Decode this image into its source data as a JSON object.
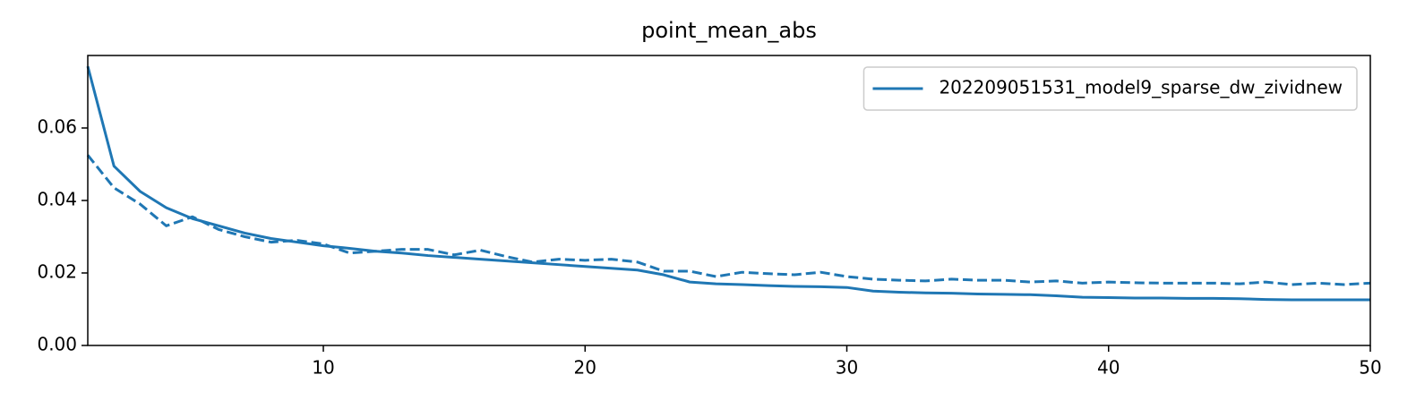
{
  "chart_data": {
    "type": "line",
    "title": "point_mean_abs",
    "x": [
      1,
      2,
      3,
      4,
      5,
      6,
      7,
      8,
      9,
      10,
      11,
      12,
      13,
      14,
      15,
      16,
      17,
      18,
      19,
      20,
      21,
      22,
      23,
      24,
      25,
      26,
      27,
      28,
      29,
      30,
      31,
      32,
      33,
      34,
      35,
      36,
      37,
      38,
      39,
      40,
      41,
      42,
      43,
      44,
      45,
      46,
      47,
      48,
      49,
      50
    ],
    "series": [
      {
        "name": "202209051531_model9_sparse_dw_zividnew",
        "color": "#1f77b4",
        "linestyle": "solid",
        "values": [
          0.077,
          0.0495,
          0.0425,
          0.038,
          0.035,
          0.033,
          0.031,
          0.0295,
          0.0285,
          0.0275,
          0.0268,
          0.026,
          0.0255,
          0.0248,
          0.0243,
          0.0238,
          0.0233,
          0.0228,
          0.0223,
          0.0218,
          0.0213,
          0.0208,
          0.0195,
          0.0175,
          0.017,
          0.0168,
          0.0165,
          0.0163,
          0.0162,
          0.016,
          0.015,
          0.0147,
          0.0145,
          0.0144,
          0.0142,
          0.0141,
          0.014,
          0.0137,
          0.0133,
          0.0132,
          0.0131,
          0.0131,
          0.013,
          0.013,
          0.0129,
          0.0127,
          0.0126,
          0.0126,
          0.0126,
          0.0126
        ]
      },
      {
        "color": "#1f77b4",
        "linestyle": "dashed",
        "values": [
          0.0525,
          0.0435,
          0.039,
          0.033,
          0.0355,
          0.032,
          0.03,
          0.0285,
          0.029,
          0.028,
          0.0255,
          0.026,
          0.0265,
          0.0265,
          0.025,
          0.0263,
          0.0245,
          0.023,
          0.0238,
          0.0235,
          0.0238,
          0.023,
          0.0205,
          0.0205,
          0.019,
          0.0202,
          0.0198,
          0.0195,
          0.0202,
          0.019,
          0.0183,
          0.018,
          0.0178,
          0.0183,
          0.018,
          0.018,
          0.0175,
          0.0178,
          0.0172,
          0.0175,
          0.0173,
          0.0172,
          0.0172,
          0.0172,
          0.017,
          0.0175,
          0.0168,
          0.0172,
          0.0168,
          0.0172
        ]
      }
    ],
    "xlim": [
      1,
      50
    ],
    "xticks": [
      10,
      20,
      30,
      40,
      50
    ],
    "ylim": [
      0,
      0.08
    ],
    "yticks": [
      {
        "value": 0,
        "label": "0.00"
      },
      0.02,
      0.04,
      0.06
    ],
    "legend": "upper right",
    "grid": false
  }
}
